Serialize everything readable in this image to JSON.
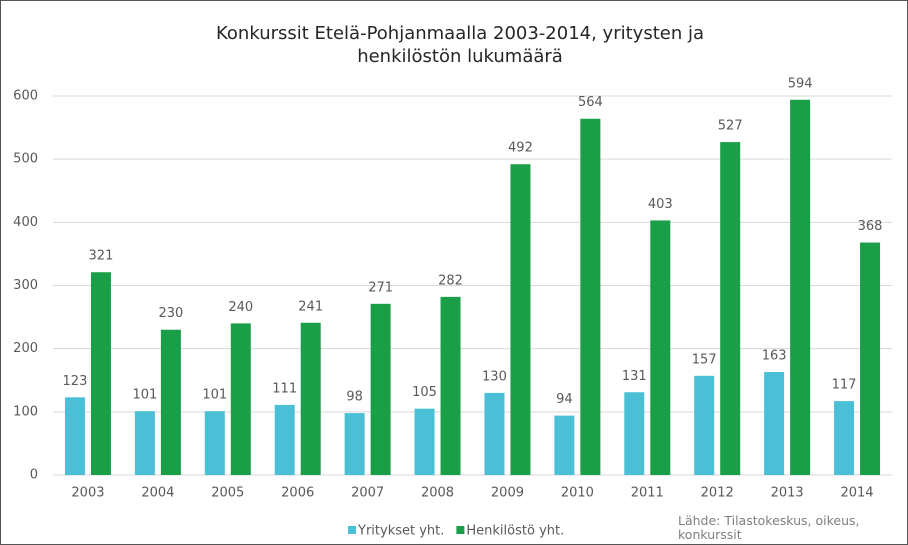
{
  "chart_data": {
    "type": "bar",
    "title": "Konkurssit Etelä-Pohjanmaalla 2003-2014, yritysten ja henkilöstön lukumäärä",
    "source": "Lähde: Tilastokeskus, oikeus, konkurssit",
    "categories": [
      "2003",
      "2004",
      "2005",
      "2006",
      "2007",
      "2008",
      "2009",
      "2010",
      "2011",
      "2012",
      "2013",
      "2014"
    ],
    "series": [
      {
        "name": "Yritykset yht.",
        "color": "#4bbfd6",
        "values": [
          123,
          101,
          101,
          111,
          98,
          105,
          130,
          94,
          131,
          157,
          163,
          117
        ]
      },
      {
        "name": "Henkilöstö yht.",
        "color": "#1a9e48",
        "values": [
          321,
          230,
          240,
          241,
          271,
          282,
          492,
          564,
          403,
          527,
          594,
          368
        ]
      }
    ],
    "ylim": [
      0,
      600
    ],
    "yticks": [
      0,
      100,
      200,
      300,
      400,
      500,
      600
    ],
    "grid": true,
    "legend": "bottom"
  }
}
